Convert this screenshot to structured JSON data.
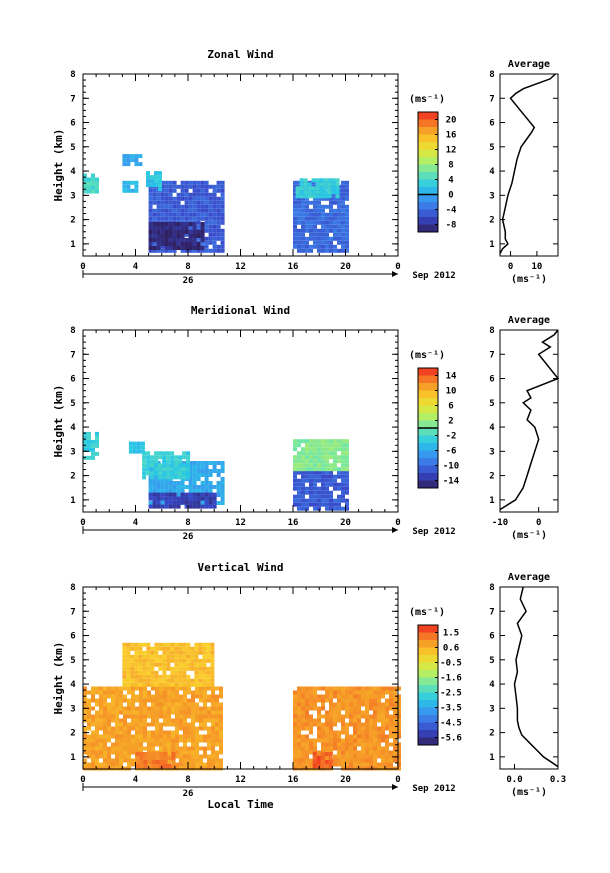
{
  "chart_data": [
    {
      "type": "heatmap",
      "title": "Zonal Wind",
      "ylabel": "Height (km)",
      "unit_label": "(ms⁻¹)",
      "xlim": [
        0,
        24
      ],
      "ylim": [
        0.5,
        8
      ],
      "x_ticks": [
        "0",
        "4",
        "8",
        "12",
        "16",
        "20",
        "0"
      ],
      "y_ticks": [
        "1",
        "2",
        "3",
        "4",
        "5",
        "6",
        "7",
        "8"
      ],
      "day_label": "26",
      "date_label": "Sep 2012",
      "colorbar_ticks": [
        "20",
        "16",
        "12",
        "8",
        "4",
        "0",
        "-4",
        "-8"
      ],
      "colorbar_range": [
        -10,
        22
      ],
      "colorbar_zero_line": 0,
      "data_blocks": [
        {
          "x": [
            5,
            10.5
          ],
          "y": [
            0.7,
            3.6
          ],
          "value": -5
        },
        {
          "x": [
            5,
            9
          ],
          "y": [
            0.9,
            1.9
          ],
          "value": -9
        },
        {
          "x": [
            4.8,
            6
          ],
          "y": [
            3.3,
            4.0
          ],
          "value": 2
        },
        {
          "x": [
            16,
            20
          ],
          "y": [
            0.7,
            3.6
          ],
          "value": -4
        },
        {
          "x": [
            16.2,
            19.5
          ],
          "y": [
            3.0,
            3.7
          ],
          "value": 3
        },
        {
          "x": [
            0,
            1
          ],
          "y": [
            3.2,
            3.9
          ],
          "value": 4
        },
        {
          "x": [
            3,
            4
          ],
          "y": [
            3.2,
            3.6
          ],
          "value": 1
        },
        {
          "x": [
            3,
            4.5
          ],
          "y": [
            4.3,
            4.7
          ],
          "value": 0
        }
      ],
      "average_profile": {
        "title": "Average",
        "xlabel": "(ms⁻¹)",
        "xlim": [
          -4,
          18
        ],
        "x_ticks": [
          "0",
          "10"
        ],
        "height": [
          0.6,
          0.8,
          1.0,
          1.2,
          1.5,
          2.0,
          2.5,
          3.0,
          3.5,
          4.0,
          4.5,
          5.0,
          5.3,
          5.6,
          5.8,
          7.0,
          7.2,
          7.4,
          7.6,
          7.8,
          8.0
        ],
        "value": [
          -4,
          -3,
          -1,
          -2,
          -2,
          -3,
          -2,
          -1,
          0.5,
          1.5,
          2.5,
          4,
          6,
          8,
          9,
          0,
          2,
          5,
          10,
          15,
          17
        ]
      }
    },
    {
      "type": "heatmap",
      "title": "Meridional Wind",
      "ylabel": "Height (km)",
      "unit_label": "(ms⁻¹)",
      "xlim": [
        0,
        24
      ],
      "ylim": [
        0.5,
        8
      ],
      "x_ticks": [
        "0",
        "4",
        "8",
        "12",
        "16",
        "20",
        "0"
      ],
      "y_ticks": [
        "1",
        "2",
        "3",
        "4",
        "5",
        "6",
        "7",
        "8"
      ],
      "day_label": "26",
      "date_label": "Sep 2012",
      "colorbar_ticks": [
        "14",
        "10",
        "6",
        "2",
        "-2",
        "-6",
        "-10",
        "-14"
      ],
      "colorbar_range": [
        -16,
        16
      ],
      "colorbar_zero_line": 0,
      "data_blocks": [
        {
          "x": [
            5,
            10.5
          ],
          "y": [
            0.8,
            2.6
          ],
          "value": -6
        },
        {
          "x": [
            5,
            10
          ],
          "y": [
            0.7,
            1.3
          ],
          "value": -13
        },
        {
          "x": [
            4.5,
            8
          ],
          "y": [
            2.0,
            3.0
          ],
          "value": -3
        },
        {
          "x": [
            16,
            20
          ],
          "y": [
            0.7,
            2.2
          ],
          "value": -11
        },
        {
          "x": [
            16,
            20
          ],
          "y": [
            2.2,
            3.5
          ],
          "value": 1
        },
        {
          "x": [
            0,
            1
          ],
          "y": [
            2.8,
            3.8
          ],
          "value": -3
        },
        {
          "x": [
            3.5,
            4.5
          ],
          "y": [
            3.0,
            3.4
          ],
          "value": -4
        }
      ],
      "average_profile": {
        "title": "Average",
        "xlabel": "(ms⁻¹)",
        "xlim": [
          -10,
          5
        ],
        "x_ticks": [
          "-10",
          "0"
        ],
        "height": [
          0.6,
          0.8,
          1.0,
          1.5,
          2.0,
          2.5,
          3.0,
          3.5,
          4.0,
          4.3,
          4.7,
          5.0,
          5.2,
          5.5,
          6.0,
          7.0,
          7.3,
          7.5,
          7.8,
          8.0
        ],
        "value": [
          -10,
          -8,
          -6,
          -4,
          -3,
          -2,
          -1,
          0,
          -1,
          -3,
          -2,
          -4,
          -2,
          -3,
          5,
          0,
          3,
          1,
          4,
          5
        ]
      }
    },
    {
      "type": "heatmap",
      "title": "Vertical Wind",
      "ylabel": "Height (km)",
      "unit_label": "(ms⁻¹)",
      "xlim": [
        0,
        24
      ],
      "ylim": [
        0.5,
        8
      ],
      "x_ticks": [
        "0",
        "4",
        "8",
        "12",
        "16",
        "20",
        "0"
      ],
      "y_ticks": [
        "1",
        "2",
        "3",
        "4",
        "5",
        "6",
        "7",
        "8"
      ],
      "day_label": "26",
      "date_label": "Sep 2012",
      "xlabel": "Local Time",
      "colorbar_ticks": [
        "1.5",
        "0.6",
        "-0.5",
        "-1.6",
        "-2.5",
        "-3.5",
        "-4.5",
        "-5.6"
      ],
      "colorbar_range": [
        -6,
        2
      ],
      "data_blocks": [
        {
          "x": [
            0,
            10.5
          ],
          "y": [
            0.6,
            3.9
          ],
          "value": 0.7
        },
        {
          "x": [
            16,
            24
          ],
          "y": [
            0.6,
            3.9
          ],
          "value": 0.9
        },
        {
          "x": [
            4,
            7
          ],
          "y": [
            0.6,
            1.2
          ],
          "value": 1.2
        },
        {
          "x": [
            17.5,
            19
          ],
          "y": [
            0.6,
            1.2
          ],
          "value": 1.5
        },
        {
          "x": [
            3,
            10
          ],
          "y": [
            3.9,
            5.7
          ],
          "value": 0.3
        }
      ],
      "average_profile": {
        "title": "Average",
        "xlabel": "(ms⁻¹)",
        "xlim": [
          -0.1,
          0.3
        ],
        "x_ticks": [
          "0.0",
          "0.3"
        ],
        "height": [
          0.6,
          0.8,
          1.0,
          1.3,
          1.6,
          1.9,
          2.2,
          2.5,
          3.0,
          3.5,
          4.0,
          4.5,
          5.0,
          5.5,
          6.0,
          6.5,
          7.0,
          7.5,
          8.0
        ],
        "value": [
          0.3,
          0.25,
          0.2,
          0.15,
          0.1,
          0.05,
          0.03,
          0.02,
          0.02,
          0.01,
          0.0,
          0.02,
          0.01,
          0.03,
          0.05,
          0.02,
          0.08,
          0.04,
          0.06
        ]
      }
    }
  ]
}
